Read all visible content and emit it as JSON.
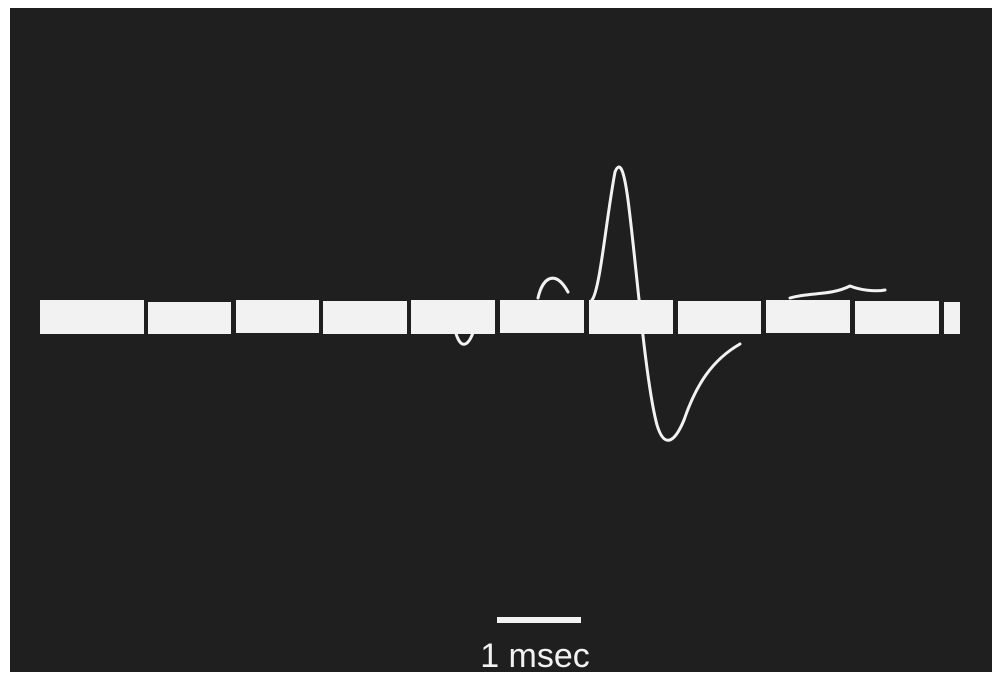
{
  "scale_bar": {
    "label": "1 msec"
  }
}
